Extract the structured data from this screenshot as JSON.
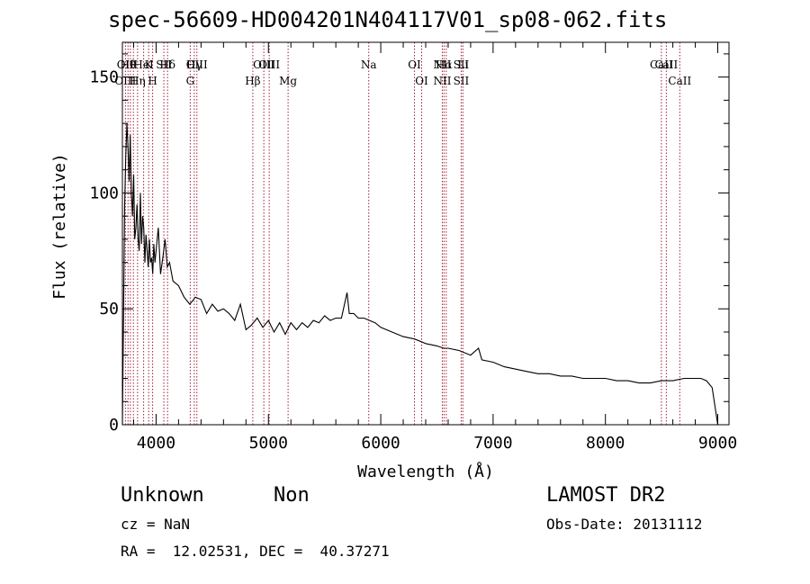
{
  "chart_data": {
    "type": "line",
    "title": "spec-56609-HD004201N404117V01_sp08-062.fits",
    "xlabel": "Wavelength (Å)",
    "ylabel": "Flux (relative)",
    "xlim": [
      3700,
      9100
    ],
    "ylim": [
      0,
      165
    ],
    "xticks": [
      4000,
      5000,
      6000,
      7000,
      8000,
      9000
    ],
    "yticks": [
      0,
      50,
      100,
      150
    ],
    "grid": false,
    "line_color": "#000000",
    "marker_color": "#a0203a",
    "series": [
      {
        "x": [
          3700,
          3710,
          3720,
          3730,
          3740,
          3750,
          3760,
          3770,
          3780,
          3790,
          3800,
          3810,
          3820,
          3830,
          3840,
          3850,
          3860,
          3870,
          3880,
          3890,
          3900,
          3910,
          3920,
          3930,
          3940,
          3950,
          3960,
          3970,
          3980,
          3990,
          4000,
          4020,
          4040,
          4060,
          4080,
          4100,
          4120,
          4150,
          4200,
          4250,
          4300,
          4350,
          4400,
          4450,
          4500,
          4550,
          4600,
          4650,
          4700,
          4750,
          4800,
          4850,
          4900,
          4950,
          5000,
          5050,
          5100,
          5150,
          5200,
          5250,
          5300,
          5350,
          5400,
          5450,
          5500,
          5550,
          5600,
          5650,
          5700,
          5720,
          5740,
          5760,
          5800,
          5850,
          5900,
          5950,
          6000,
          6100,
          6200,
          6300,
          6400,
          6500,
          6560,
          6600,
          6700,
          6800,
          6870,
          6900,
          7000,
          7100,
          7200,
          7300,
          7400,
          7500,
          7600,
          7700,
          7800,
          7900,
          8000,
          8100,
          8200,
          8300,
          8400,
          8500,
          8600,
          8700,
          8800,
          8850,
          8900,
          8950,
          9000
        ],
        "values": [
          0,
          45,
          95,
          115,
          130,
          120,
          105,
          125,
          100,
          90,
          108,
          80,
          85,
          95,
          80,
          75,
          100,
          78,
          90,
          85,
          70,
          82,
          75,
          68,
          80,
          70,
          72,
          65,
          78,
          70,
          75,
          85,
          65,
          72,
          80,
          68,
          70,
          62,
          60,
          55,
          52,
          55,
          54,
          48,
          52,
          49,
          50,
          48,
          45,
          52,
          41,
          43,
          46,
          42,
          45,
          40,
          44,
          39,
          44,
          41,
          44,
          42,
          45,
          44,
          47,
          45,
          46,
          46,
          57,
          48,
          48,
          48,
          46,
          46,
          45,
          44,
          42,
          40,
          38,
          37,
          35,
          34,
          33,
          33,
          32,
          30,
          33,
          28,
          27,
          25,
          24,
          23,
          22,
          22,
          21,
          21,
          20,
          20,
          20,
          19,
          19,
          18,
          18,
          19,
          19,
          20,
          20,
          20,
          19,
          16,
          0
        ]
      }
    ],
    "line_markers": [
      {
        "x": 3727,
        "top": "OII",
        "bottom": "OIII"
      },
      {
        "x": 3750,
        "top": "Hθ",
        "bottom": ""
      },
      {
        "x": 3771,
        "top": "",
        "bottom": ""
      },
      {
        "x": 3798,
        "top": "",
        "bottom": ""
      },
      {
        "x": 3835,
        "top": "",
        "bottom": "Hη"
      },
      {
        "x": 3889,
        "top": "HeI",
        "bottom": ""
      },
      {
        "x": 3934,
        "top": "K",
        "bottom": ""
      },
      {
        "x": 3969,
        "top": "",
        "bottom": "H"
      },
      {
        "x": 4069,
        "top": "SII",
        "bottom": ""
      },
      {
        "x": 4102,
        "top": "Hδ",
        "bottom": ""
      },
      {
        "x": 4304,
        "top": "",
        "bottom": "G"
      },
      {
        "x": 4340,
        "top": "Hγ",
        "bottom": ""
      },
      {
        "x": 4363,
        "top": "OIII",
        "bottom": ""
      },
      {
        "x": 4861,
        "top": "",
        "bottom": "Hβ"
      },
      {
        "x": 4959,
        "top": "OIII",
        "bottom": ""
      },
      {
        "x": 5007,
        "top": "OIII",
        "bottom": ""
      },
      {
        "x": 5175,
        "top": "",
        "bottom": "Mg"
      },
      {
        "x": 5893,
        "top": "Na",
        "bottom": ""
      },
      {
        "x": 6300,
        "top": "OI",
        "bottom": ""
      },
      {
        "x": 6364,
        "top": "",
        "bottom": "OI"
      },
      {
        "x": 6548,
        "top": "NII",
        "bottom": "NII"
      },
      {
        "x": 6563,
        "top": "Hα",
        "bottom": ""
      },
      {
        "x": 6583,
        "top": "",
        "bottom": ""
      },
      {
        "x": 6716,
        "top": "SII",
        "bottom": "SII"
      },
      {
        "x": 6731,
        "top": "Li",
        "bottom": ""
      },
      {
        "x": 8498,
        "top": "CaII",
        "bottom": ""
      },
      {
        "x": 8542,
        "top": "CaII",
        "bottom": ""
      },
      {
        "x": 8662,
        "top": "",
        "bottom": "CaII"
      }
    ]
  },
  "footer": {
    "object_class": "Unknown",
    "object_subclass": "Non",
    "survey": "LAMOST DR2",
    "cz": "cz = NaN",
    "obs_date": "Obs-Date: 20131112",
    "coords": "RA =  12.02531, DEC =  40.37271"
  }
}
